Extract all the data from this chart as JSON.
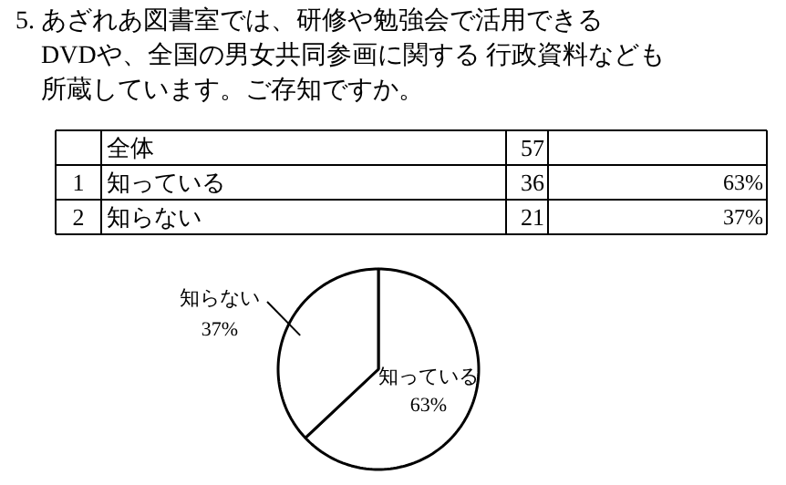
{
  "chart_data": {
    "type": "pie",
    "title": "5. あざれあ図書室では、研修や勉強会で活用できるDVDや、全国の男女共同参画に関する 行政資料なども所蔵しています。ご存知ですか。",
    "categories": [
      "知っている",
      "知らない"
    ],
    "values": [
      63,
      37
    ],
    "value_labels": [
      "63%",
      "37%"
    ],
    "colors": [
      "#ffffff",
      "#ffffff"
    ],
    "annotations": [
      "全体",
      "57",
      "1",
      "36",
      "2",
      "21"
    ]
  }
}
